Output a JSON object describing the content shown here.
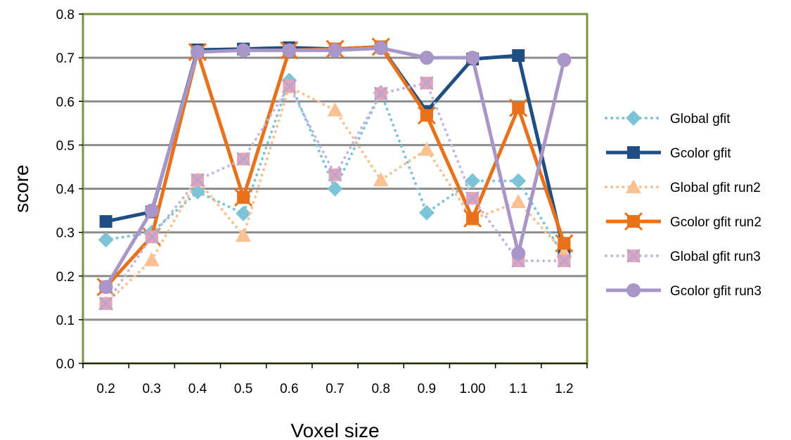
{
  "chart_data": {
    "type": "line",
    "title": "",
    "xlabel": "Voxel size",
    "ylabel": "score",
    "categories": [
      "0.2",
      "0.3",
      "0.4",
      "0.5",
      "0.6",
      "0.7",
      "0.8",
      "0.9",
      "1.00",
      "1.1",
      "1.2"
    ],
    "ylim": [
      0,
      0.8
    ],
    "yticks": [
      "0.0",
      "0.1",
      "0.2",
      "0.3",
      "0.4",
      "0.5",
      "0.6",
      "0.7",
      "0.8"
    ],
    "grid": true,
    "legend_position": "right",
    "series": [
      {
        "name": "Global gfit",
        "color": "#7ec4d8",
        "style": "dotted",
        "marker": "diamond",
        "values": [
          0.283,
          0.3,
          0.393,
          0.343,
          0.648,
          0.4,
          0.62,
          0.345,
          0.418,
          0.418,
          0.245
        ]
      },
      {
        "name": "Gcolor gfit",
        "color": "#1f4e82",
        "style": "solid",
        "marker": "square",
        "values": [
          0.325,
          0.347,
          0.718,
          0.72,
          0.723,
          0.72,
          0.725,
          0.577,
          0.697,
          0.705,
          0.255
        ]
      },
      {
        "name": "Global gfit run2",
        "color": "#f9c192",
        "style": "dotted",
        "marker": "triangle",
        "values": [
          0.137,
          0.237,
          0.42,
          0.293,
          0.633,
          0.58,
          0.42,
          0.49,
          0.33,
          0.37,
          0.255
        ]
      },
      {
        "name": "Gcolor gfit run2",
        "color": "#e8711a",
        "style": "solid",
        "marker": "cross-square",
        "values": [
          0.175,
          0.29,
          0.713,
          0.38,
          0.717,
          0.72,
          0.725,
          0.568,
          0.332,
          0.585,
          0.275
        ]
      },
      {
        "name": "Global gfit run3",
        "color": "#c6b5dc",
        "style": "dotted",
        "marker": "x-square",
        "values": [
          0.137,
          0.29,
          0.42,
          0.468,
          0.635,
          0.432,
          0.618,
          0.642,
          0.378,
          0.235,
          0.235
        ]
      },
      {
        "name": "Gcolor gfit run3",
        "color": "#a896c8",
        "style": "solid",
        "marker": "circle",
        "values": [
          0.175,
          0.35,
          0.713,
          0.717,
          0.717,
          0.717,
          0.722,
          0.7,
          0.7,
          0.252,
          0.695
        ]
      }
    ]
  }
}
